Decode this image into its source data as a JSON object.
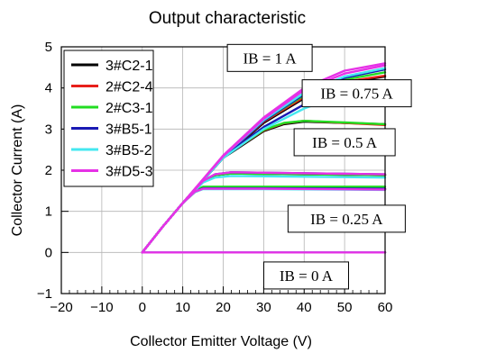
{
  "chart_data": {
    "type": "line",
    "title": "Output characteristic",
    "xlabel": "Collector Emitter Voltage (V)",
    "ylabel": "Collector Current (A)",
    "xlim": [
      -20,
      60
    ],
    "ylim": [
      -1,
      5
    ],
    "xticks": [
      -20,
      -10,
      0,
      10,
      20,
      30,
      40,
      50,
      60
    ],
    "yticks": [
      -1,
      0,
      1,
      2,
      3,
      4,
      5
    ],
    "grid": true,
    "legend_position": "top-left",
    "series": [
      {
        "name": "3#C2-1",
        "color": "#000000",
        "curves": [
          {
            "ib": 0,
            "x": [
              0,
              60
            ],
            "y": [
              0,
              0
            ]
          },
          {
            "ib": 0.25,
            "x": [
              0,
              5,
              10,
              13,
              15,
              30,
              60
            ],
            "y": [
              0,
              0.62,
              1.2,
              1.47,
              1.55,
              1.55,
              1.53
            ]
          },
          {
            "ib": 0.5,
            "x": [
              0,
              5,
              10,
              15,
              18,
              22,
              60
            ],
            "y": [
              0,
              0.62,
              1.2,
              1.72,
              1.88,
              1.92,
              1.88
            ]
          },
          {
            "ib": 0.75,
            "x": [
              0,
              5,
              10,
              20,
              30,
              35,
              40,
              50,
              60
            ],
            "y": [
              0,
              0.62,
              1.2,
              2.3,
              2.95,
              3.12,
              3.18,
              3.15,
              3.12
            ]
          },
          {
            "ib": 1,
            "x": [
              0,
              5,
              10,
              20,
              30,
              40,
              50,
              60
            ],
            "y": [
              0,
              0.62,
              1.2,
              2.3,
              3.15,
              3.75,
              4.12,
              4.28
            ]
          }
        ]
      },
      {
        "name": "2#C2-4",
        "color": "#e8201a",
        "curves": [
          {
            "ib": 0,
            "x": [
              0,
              60
            ],
            "y": [
              0,
              0
            ]
          },
          {
            "ib": 0.25,
            "x": [
              0,
              5,
              10,
              13,
              15,
              30,
              60
            ],
            "y": [
              0,
              0.62,
              1.2,
              1.48,
              1.56,
              1.56,
              1.55
            ]
          },
          {
            "ib": 0.5,
            "x": [
              0,
              5,
              10,
              15,
              18,
              22,
              60
            ],
            "y": [
              0,
              0.62,
              1.2,
              1.72,
              1.88,
              1.93,
              1.88
            ]
          },
          {
            "ib": 0.75,
            "x": [
              0,
              5,
              10,
              20,
              30,
              35,
              40,
              50,
              60
            ],
            "y": [
              0,
              0.62,
              1.2,
              2.32,
              2.97,
              3.14,
              3.2,
              3.15,
              3.1
            ]
          },
          {
            "ib": 1,
            "x": [
              0,
              5,
              10,
              20,
              30,
              40,
              50,
              60
            ],
            "y": [
              0,
              0.62,
              1.2,
              2.32,
              3.18,
              3.78,
              4.15,
              4.3
            ]
          }
        ]
      },
      {
        "name": "2#C3-1",
        "color": "#22dd22",
        "curves": [
          {
            "ib": 0,
            "x": [
              0,
              60
            ],
            "y": [
              0,
              0
            ]
          },
          {
            "ib": 0.25,
            "x": [
              0,
              5,
              10,
              13,
              15,
              30,
              60
            ],
            "y": [
              0,
              0.62,
              1.2,
              1.5,
              1.6,
              1.6,
              1.6
            ]
          },
          {
            "ib": 0.5,
            "x": [
              0,
              5,
              10,
              15,
              18,
              22,
              60
            ],
            "y": [
              0,
              0.62,
              1.2,
              1.72,
              1.88,
              1.92,
              1.88
            ]
          },
          {
            "ib": 0.75,
            "x": [
              0,
              5,
              10,
              20,
              30,
              35,
              40,
              50,
              60
            ],
            "y": [
              0,
              0.62,
              1.2,
              2.32,
              2.98,
              3.15,
              3.2,
              3.16,
              3.12
            ]
          },
          {
            "ib": 1,
            "x": [
              0,
              5,
              10,
              20,
              30,
              40,
              50,
              60
            ],
            "y": [
              0,
              0.62,
              1.2,
              2.32,
              3.2,
              3.82,
              4.2,
              4.38
            ]
          }
        ]
      },
      {
        "name": "3#B5-1",
        "color": "#1a1ab4",
        "curves": [
          {
            "ib": 0,
            "x": [
              0,
              60
            ],
            "y": [
              0,
              0
            ]
          },
          {
            "ib": 0.25,
            "x": [
              0,
              5,
              10,
              13,
              15,
              30,
              60
            ],
            "y": [
              0,
              0.62,
              1.2,
              1.48,
              1.56,
              1.56,
              1.55
            ]
          },
          {
            "ib": 0.5,
            "x": [
              0,
              5,
              10,
              15,
              18,
              22,
              60
            ],
            "y": [
              0,
              0.62,
              1.2,
              1.74,
              1.9,
              1.95,
              1.9
            ]
          },
          {
            "ib": 0.75,
            "x": [
              0,
              5,
              10,
              20,
              30,
              40,
              45,
              50,
              60
            ],
            "y": [
              0,
              0.62,
              1.2,
              2.32,
              3.05,
              3.6,
              3.75,
              3.8,
              3.78
            ]
          },
          {
            "ib": 1,
            "x": [
              0,
              5,
              10,
              20,
              30,
              40,
              50,
              60
            ],
            "y": [
              0,
              0.62,
              1.2,
              2.32,
              3.2,
              3.85,
              4.25,
              4.45
            ]
          }
        ]
      },
      {
        "name": "3#B5-2",
        "color": "#44e8f0",
        "curves": [
          {
            "ib": 0,
            "x": [
              0,
              60
            ],
            "y": [
              0,
              0
            ]
          },
          {
            "ib": 0.25,
            "x": [
              0,
              5,
              10,
              13,
              15,
              30,
              60
            ],
            "y": [
              0,
              0.62,
              1.2,
              1.47,
              1.54,
              1.54,
              1.52
            ]
          },
          {
            "ib": 0.5,
            "x": [
              0,
              5,
              10,
              15,
              18,
              22,
              60
            ],
            "y": [
              0,
              0.62,
              1.2,
              1.7,
              1.82,
              1.86,
              1.82
            ]
          },
          {
            "ib": 0.75,
            "x": [
              0,
              5,
              10,
              20,
              30,
              40,
              45,
              50,
              60
            ],
            "y": [
              0,
              0.62,
              1.2,
              2.3,
              3.0,
              3.5,
              3.68,
              3.72,
              3.72
            ]
          },
          {
            "ib": 1,
            "x": [
              0,
              5,
              10,
              20,
              30,
              40,
              50,
              60
            ],
            "y": [
              0,
              0.62,
              1.2,
              2.34,
              3.22,
              3.88,
              4.28,
              4.48
            ]
          }
        ]
      },
      {
        "name": "3#D5-3",
        "color": "#e631e6",
        "curves": [
          {
            "ib": 0,
            "x": [
              0,
              60
            ],
            "y": [
              0,
              0
            ]
          },
          {
            "ib": 0.25,
            "x": [
              0,
              5,
              10,
              13,
              15,
              30,
              60
            ],
            "y": [
              0,
              0.62,
              1.2,
              1.48,
              1.55,
              1.55,
              1.53
            ]
          },
          {
            "ib": 0.5,
            "x": [
              0,
              5,
              10,
              15,
              18,
              22,
              60
            ],
            "y": [
              0,
              0.62,
              1.2,
              1.74,
              1.9,
              1.95,
              1.9
            ]
          },
          {
            "ib": 0.75,
            "x": [
              0,
              5,
              10,
              20,
              30,
              40,
              50,
              60
            ],
            "y": [
              0,
              0.62,
              1.2,
              2.34,
              3.25,
              3.95,
              4.35,
              4.55
            ]
          },
          {
            "ib": 1,
            "x": [
              0,
              5,
              10,
              20,
              30,
              40,
              50,
              60
            ],
            "y": [
              0,
              0.62,
              1.2,
              2.36,
              3.28,
              4.0,
              4.42,
              4.6
            ]
          }
        ]
      }
    ],
    "annotations": [
      {
        "text": "IB = 1 A",
        "x": 31.5,
        "y": 4.73
      },
      {
        "text": "IB = 0.75 A",
        "x": 53,
        "y": 3.87
      },
      {
        "text": "IB = 0.5 A",
        "x": 50,
        "y": 2.68
      },
      {
        "text": "IB = 0.25  A",
        "x": 50.5,
        "y": 0.82
      },
      {
        "text": "IB = 0 A",
        "x": 40.5,
        "y": -0.56
      }
    ]
  }
}
